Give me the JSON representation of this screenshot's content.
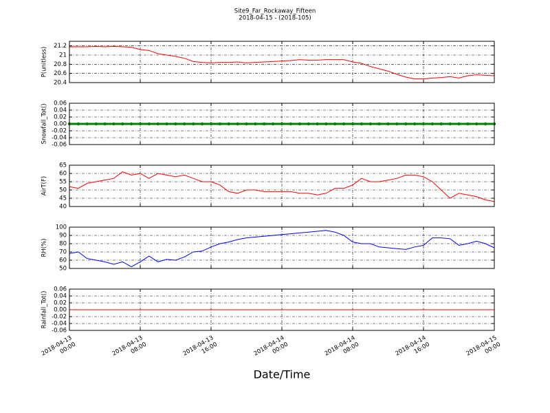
{
  "chart_data": [
    {
      "type": "line",
      "title": "Site9_Far_Rockaway_Fifteen",
      "subtitle": "2018-04-15 - (2018-105)",
      "ylabel": "P(unitless)",
      "color": "#ff0000",
      "grid": true,
      "xlim": [
        "2018-04-13 00:00",
        "2018-04-15 00:00"
      ],
      "xticks": [
        "2018-04-13 00:00",
        "2018-04-13 08:00",
        "2018-04-13 16:00",
        "2018-04-14 00:00",
        "2018-04-14 08:00",
        "2018-04-14 16:00",
        "2018-04-15 00:00"
      ],
      "ylim": [
        20.4,
        21.3
      ],
      "yticks": [
        20.4,
        20.6,
        20.8,
        21.0,
        21.2
      ],
      "x": [
        "2018-04-13 00:00",
        "2018-04-13 01:00",
        "2018-04-13 02:00",
        "2018-04-13 03:00",
        "2018-04-13 04:00",
        "2018-04-13 05:00",
        "2018-04-13 06:00",
        "2018-04-13 07:00",
        "2018-04-13 08:00",
        "2018-04-13 09:00",
        "2018-04-13 10:00",
        "2018-04-13 11:00",
        "2018-04-13 12:00",
        "2018-04-13 13:00",
        "2018-04-13 14:00",
        "2018-04-13 15:00",
        "2018-04-13 16:00",
        "2018-04-13 17:00",
        "2018-04-13 18:00",
        "2018-04-13 19:00",
        "2018-04-13 20:00",
        "2018-04-13 21:00",
        "2018-04-13 22:00",
        "2018-04-13 23:00",
        "2018-04-14 00:00",
        "2018-04-14 01:00",
        "2018-04-14 02:00",
        "2018-04-14 03:00",
        "2018-04-14 04:00",
        "2018-04-14 05:00",
        "2018-04-14 06:00",
        "2018-04-14 07:00",
        "2018-04-14 08:00",
        "2018-04-14 09:00",
        "2018-04-14 10:00",
        "2018-04-14 11:00",
        "2018-04-14 12:00",
        "2018-04-14 13:00",
        "2018-04-14 14:00",
        "2018-04-14 15:00",
        "2018-04-14 16:00",
        "2018-04-14 17:00",
        "2018-04-14 18:00",
        "2018-04-14 19:00",
        "2018-04-14 20:00",
        "2018-04-14 21:00",
        "2018-04-14 22:00",
        "2018-04-14 23:00",
        "2018-04-15 00:00"
      ],
      "values": [
        21.18,
        21.18,
        21.18,
        21.19,
        21.18,
        21.19,
        21.18,
        21.17,
        21.12,
        21.1,
        21.03,
        21.0,
        20.97,
        20.93,
        20.86,
        20.84,
        20.83,
        20.84,
        20.84,
        20.85,
        20.83,
        20.84,
        20.85,
        20.86,
        20.87,
        20.88,
        20.9,
        20.89,
        20.89,
        20.9,
        20.9,
        20.9,
        20.85,
        20.82,
        20.75,
        20.7,
        20.65,
        20.58,
        20.52,
        20.48,
        20.48,
        20.5,
        20.51,
        20.53,
        20.5,
        20.55,
        20.57,
        20.56,
        20.55
      ]
    },
    {
      "type": "line-marker",
      "ylabel": "Snowfall_Tot()",
      "color": "#008000",
      "grid": true,
      "xlim": [
        "2018-04-13 00:00",
        "2018-04-15 00:00"
      ],
      "xticks": [
        "2018-04-13 00:00",
        "2018-04-13 08:00",
        "2018-04-13 16:00",
        "2018-04-14 00:00",
        "2018-04-14 08:00",
        "2018-04-14 16:00",
        "2018-04-15 00:00"
      ],
      "ylim": [
        -0.06,
        0.06
      ],
      "yticks": [
        -0.06,
        -0.04,
        -0.02,
        {
          "value": 0,
          "label": "0.00"
        },
        0.02,
        0.04,
        0.06
      ],
      "x": [
        "2018-04-13 00:00",
        "2018-04-13 01:00",
        "2018-04-13 02:00",
        "2018-04-13 03:00",
        "2018-04-13 04:00",
        "2018-04-13 05:00",
        "2018-04-13 06:00",
        "2018-04-13 07:00",
        "2018-04-13 08:00",
        "2018-04-13 09:00",
        "2018-04-13 10:00",
        "2018-04-13 11:00",
        "2018-04-13 12:00",
        "2018-04-13 13:00",
        "2018-04-13 14:00",
        "2018-04-13 15:00",
        "2018-04-13 16:00",
        "2018-04-13 17:00",
        "2018-04-13 18:00",
        "2018-04-13 19:00",
        "2018-04-13 20:00",
        "2018-04-13 21:00",
        "2018-04-13 22:00",
        "2018-04-13 23:00",
        "2018-04-14 00:00",
        "2018-04-14 01:00",
        "2018-04-14 02:00",
        "2018-04-14 03:00",
        "2018-04-14 04:00",
        "2018-04-14 05:00",
        "2018-04-14 06:00",
        "2018-04-14 07:00",
        "2018-04-14 08:00",
        "2018-04-14 09:00",
        "2018-04-14 10:00",
        "2018-04-14 11:00",
        "2018-04-14 12:00",
        "2018-04-14 13:00",
        "2018-04-14 14:00",
        "2018-04-14 15:00",
        "2018-04-14 16:00",
        "2018-04-14 17:00",
        "2018-04-14 18:00",
        "2018-04-14 19:00",
        "2018-04-14 20:00",
        "2018-04-14 21:00",
        "2018-04-14 22:00",
        "2018-04-14 23:00",
        "2018-04-15 00:00"
      ],
      "values": [
        0,
        0,
        0,
        0,
        0,
        0,
        0,
        0,
        0,
        0,
        0,
        0,
        0,
        0,
        0,
        0,
        0,
        0,
        0,
        0,
        0,
        0,
        0,
        0,
        0,
        0,
        0,
        0,
        0,
        0,
        0,
        0,
        0,
        0,
        0,
        0,
        0,
        0,
        0,
        0,
        0,
        0,
        0,
        0,
        0,
        0,
        0,
        0,
        0
      ]
    },
    {
      "type": "line",
      "ylabel": "AirT(F)",
      "color": "#ff0000",
      "grid": true,
      "xlim": [
        "2018-04-13 00:00",
        "2018-04-15 00:00"
      ],
      "xticks": [
        "2018-04-13 00:00",
        "2018-04-13 08:00",
        "2018-04-13 16:00",
        "2018-04-14 00:00",
        "2018-04-14 08:00",
        "2018-04-14 16:00",
        "2018-04-15 00:00"
      ],
      "ylim": [
        40,
        65
      ],
      "yticks": [
        40,
        45,
        50,
        55,
        60,
        65
      ],
      "x": [
        "2018-04-13 00:00",
        "2018-04-13 01:00",
        "2018-04-13 02:00",
        "2018-04-13 03:00",
        "2018-04-13 04:00",
        "2018-04-13 05:00",
        "2018-04-13 06:00",
        "2018-04-13 07:00",
        "2018-04-13 08:00",
        "2018-04-13 09:00",
        "2018-04-13 10:00",
        "2018-04-13 11:00",
        "2018-04-13 12:00",
        "2018-04-13 13:00",
        "2018-04-13 14:00",
        "2018-04-13 15:00",
        "2018-04-13 16:00",
        "2018-04-13 17:00",
        "2018-04-13 18:00",
        "2018-04-13 19:00",
        "2018-04-13 20:00",
        "2018-04-13 21:00",
        "2018-04-13 22:00",
        "2018-04-13 23:00",
        "2018-04-14 00:00",
        "2018-04-14 01:00",
        "2018-04-14 02:00",
        "2018-04-14 03:00",
        "2018-04-14 04:00",
        "2018-04-14 05:00",
        "2018-04-14 06:00",
        "2018-04-14 07:00",
        "2018-04-14 08:00",
        "2018-04-14 09:00",
        "2018-04-14 10:00",
        "2018-04-14 11:00",
        "2018-04-14 12:00",
        "2018-04-14 13:00",
        "2018-04-14 14:00",
        "2018-04-14 15:00",
        "2018-04-14 16:00",
        "2018-04-14 17:00",
        "2018-04-14 18:00",
        "2018-04-14 19:00",
        "2018-04-14 20:00",
        "2018-04-14 21:00",
        "2018-04-14 22:00",
        "2018-04-14 23:00",
        "2018-04-15 00:00"
      ],
      "values": [
        52,
        51,
        54,
        55,
        56,
        57,
        61,
        59,
        60,
        57,
        60,
        59,
        58,
        59,
        57,
        55,
        55,
        53,
        49,
        48,
        50,
        50,
        49,
        49,
        49,
        49,
        48,
        48,
        47,
        48,
        51,
        51,
        53,
        57,
        55,
        55,
        56,
        57,
        59,
        59,
        58,
        55,
        50,
        45,
        48,
        47,
        46,
        44,
        43
      ]
    },
    {
      "type": "line",
      "ylabel": "RH(%)",
      "color": "#0000ff",
      "grid": true,
      "xlim": [
        "2018-04-13 00:00",
        "2018-04-15 00:00"
      ],
      "xticks": [
        "2018-04-13 00:00",
        "2018-04-13 08:00",
        "2018-04-13 16:00",
        "2018-04-14 00:00",
        "2018-04-14 08:00",
        "2018-04-14 16:00",
        "2018-04-15 00:00"
      ],
      "ylim": [
        50,
        100
      ],
      "yticks": [
        50,
        60,
        70,
        80,
        90,
        100
      ],
      "x": [
        "2018-04-13 00:00",
        "2018-04-13 01:00",
        "2018-04-13 02:00",
        "2018-04-13 03:00",
        "2018-04-13 04:00",
        "2018-04-13 05:00",
        "2018-04-13 06:00",
        "2018-04-13 07:00",
        "2018-04-13 08:00",
        "2018-04-13 09:00",
        "2018-04-13 10:00",
        "2018-04-13 11:00",
        "2018-04-13 12:00",
        "2018-04-13 13:00",
        "2018-04-13 14:00",
        "2018-04-13 15:00",
        "2018-04-13 16:00",
        "2018-04-13 17:00",
        "2018-04-13 18:00",
        "2018-04-13 19:00",
        "2018-04-13 20:00",
        "2018-04-13 21:00",
        "2018-04-13 22:00",
        "2018-04-13 23:00",
        "2018-04-14 00:00",
        "2018-04-14 01:00",
        "2018-04-14 02:00",
        "2018-04-14 03:00",
        "2018-04-14 04:00",
        "2018-04-14 05:00",
        "2018-04-14 06:00",
        "2018-04-14 07:00",
        "2018-04-14 08:00",
        "2018-04-14 09:00",
        "2018-04-14 10:00",
        "2018-04-14 11:00",
        "2018-04-14 12:00",
        "2018-04-14 13:00",
        "2018-04-14 14:00",
        "2018-04-14 15:00",
        "2018-04-14 16:00",
        "2018-04-14 17:00",
        "2018-04-14 18:00",
        "2018-04-14 19:00",
        "2018-04-14 20:00",
        "2018-04-14 21:00",
        "2018-04-14 22:00",
        "2018-04-14 23:00",
        "2018-04-15 00:00"
      ],
      "values": [
        68,
        70,
        62,
        60,
        58,
        55,
        58,
        52,
        58,
        65,
        58,
        61,
        60,
        64,
        70,
        71,
        76,
        80,
        82,
        85,
        87,
        88,
        89,
        90,
        91,
        92,
        93,
        94,
        95,
        96,
        94,
        90,
        82,
        80,
        80,
        76,
        75,
        74,
        73,
        76,
        78,
        87,
        87,
        86,
        78,
        80,
        83,
        80,
        75
      ]
    },
    {
      "type": "line",
      "ylabel": "Rainfall_Tot()",
      "xlabel": "Date/Time",
      "color": "#ff0000",
      "grid": true,
      "xlim": [
        "2018-04-13 00:00",
        "2018-04-15 00:00"
      ],
      "xticks": [
        {
          "value": "2018-04-13 00:00",
          "label": "2018-04-13\n00:00"
        },
        {
          "value": "2018-04-13 08:00",
          "label": "2018-04-13\n08:00"
        },
        {
          "value": "2018-04-13 16:00",
          "label": "2018-04-13\n16:00"
        },
        {
          "value": "2018-04-14 00:00",
          "label": "2018-04-14\n00:00"
        },
        {
          "value": "2018-04-14 08:00",
          "label": "2018-04-14\n08:00"
        },
        {
          "value": "2018-04-14 16:00",
          "label": "2018-04-14\n16:00"
        },
        {
          "value": "2018-04-15 00:00",
          "label": "2018-04-15\n00:00"
        }
      ],
      "ylim": [
        -0.06,
        0.06
      ],
      "yticks": [
        -0.06,
        -0.04,
        -0.02,
        {
          "value": 0,
          "label": "0.00"
        },
        0.02,
        0.04,
        0.06
      ],
      "x": [
        "2018-04-13 00:00",
        "2018-04-13 01:00",
        "2018-04-13 02:00",
        "2018-04-13 03:00",
        "2018-04-13 04:00",
        "2018-04-13 05:00",
        "2018-04-13 06:00",
        "2018-04-13 07:00",
        "2018-04-13 08:00",
        "2018-04-13 09:00",
        "2018-04-13 10:00",
        "2018-04-13 11:00",
        "2018-04-13 12:00",
        "2018-04-13 13:00",
        "2018-04-13 14:00",
        "2018-04-13 15:00",
        "2018-04-13 16:00",
        "2018-04-13 17:00",
        "2018-04-13 18:00",
        "2018-04-13 19:00",
        "2018-04-13 20:00",
        "2018-04-13 21:00",
        "2018-04-13 22:00",
        "2018-04-13 23:00",
        "2018-04-14 00:00",
        "2018-04-14 01:00",
        "2018-04-14 02:00",
        "2018-04-14 03:00",
        "2018-04-14 04:00",
        "2018-04-14 05:00",
        "2018-04-14 06:00",
        "2018-04-14 07:00",
        "2018-04-14 08:00",
        "2018-04-14 09:00",
        "2018-04-14 10:00",
        "2018-04-14 11:00",
        "2018-04-14 12:00",
        "2018-04-14 13:00",
        "2018-04-14 14:00",
        "2018-04-14 15:00",
        "2018-04-14 16:00",
        "2018-04-14 17:00",
        "2018-04-14 18:00",
        "2018-04-14 19:00",
        "2018-04-14 20:00",
        "2018-04-14 21:00",
        "2018-04-14 22:00",
        "2018-04-14 23:00",
        "2018-04-15 00:00"
      ],
      "values": [
        0,
        0,
        0,
        0,
        0,
        0,
        0,
        0,
        0,
        0,
        0,
        0,
        0,
        0,
        0,
        0,
        0,
        0,
        0,
        0,
        0,
        0,
        0,
        0,
        0,
        0,
        0,
        0,
        0,
        0,
        0,
        0,
        0,
        0,
        0,
        0,
        0,
        0,
        0,
        0,
        0,
        0,
        0,
        0,
        0,
        0,
        0,
        0,
        0
      ]
    }
  ]
}
